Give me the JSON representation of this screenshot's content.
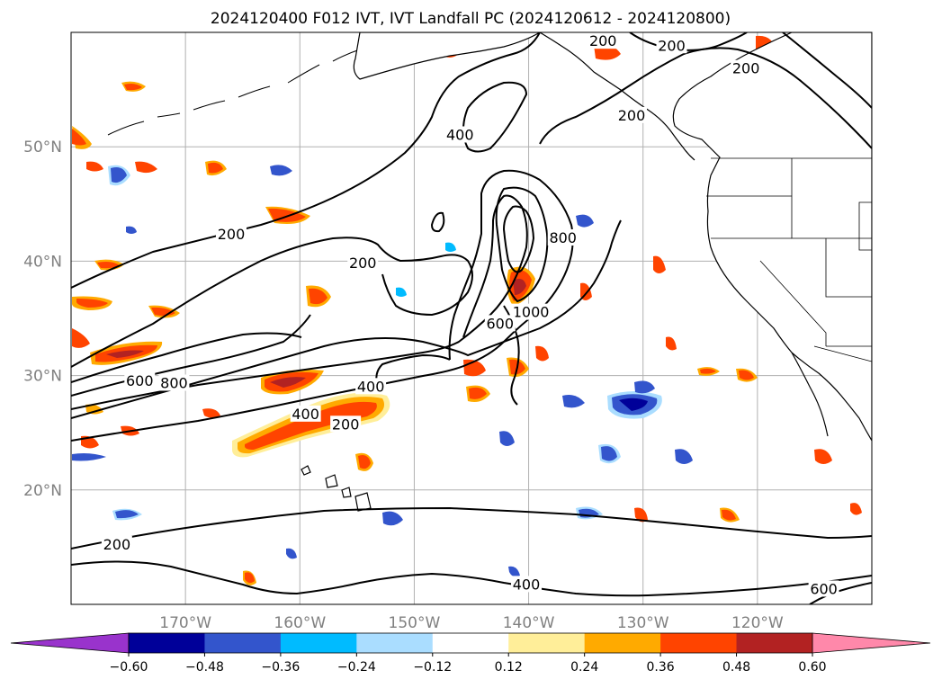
{
  "title": "2024120400 F012 IVT, IVT Landfall PC (2024120612 - 2024120800)",
  "map": {
    "lon_range": [
      -180,
      -110
    ],
    "lat_range": [
      10,
      60
    ],
    "lon_ticks": [
      {
        "value": -170,
        "label": "170°W"
      },
      {
        "value": -160,
        "label": "160°W"
      },
      {
        "value": -150,
        "label": "150°W"
      },
      {
        "value": -140,
        "label": "140°W"
      },
      {
        "value": -130,
        "label": "130°W"
      },
      {
        "value": -120,
        "label": "120°W"
      }
    ],
    "lat_ticks": [
      {
        "value": 50,
        "label": "50°N"
      },
      {
        "value": 40,
        "label": "40°N"
      },
      {
        "value": 30,
        "label": "30°N"
      },
      {
        "value": 20,
        "label": "20°N"
      }
    ],
    "contour_labels": [
      {
        "text": "200",
        "lon": -154.5,
        "lat": 39.8
      },
      {
        "text": "400",
        "lon": -146.0,
        "lat": 51.0
      },
      {
        "text": "800",
        "lon": -137.0,
        "lat": 42.0
      },
      {
        "text": "1000",
        "lon": -139.8,
        "lat": 35.5
      },
      {
        "text": "600",
        "lon": -142.5,
        "lat": 34.5
      },
      {
        "text": "200",
        "lon": -166.0,
        "lat": 42.3
      },
      {
        "text": "600",
        "lon": -174.0,
        "lat": 29.5
      },
      {
        "text": "800",
        "lon": -171.0,
        "lat": 29.3
      },
      {
        "text": "400",
        "lon": -153.8,
        "lat": 29.0
      },
      {
        "text": "400",
        "lon": -159.5,
        "lat": 26.6
      },
      {
        "text": "200",
        "lon": -156.0,
        "lat": 25.7
      },
      {
        "text": "200",
        "lon": -176.0,
        "lat": 15.2
      },
      {
        "text": "400",
        "lon": -140.2,
        "lat": 11.7
      },
      {
        "text": "600",
        "lon": -114.2,
        "lat": 11.3
      },
      {
        "text": "200",
        "lon": -127.5,
        "lat": 58.8
      },
      {
        "text": "200",
        "lon": -121.0,
        "lat": 56.8
      },
      {
        "text": "200",
        "lon": -131.0,
        "lat": 52.7
      },
      {
        "text": "200",
        "lon": -133.5,
        "lat": 59.2
      }
    ],
    "colors": {
      "background": "#ffffff",
      "frame": "#000000",
      "grid": "#b0b0b0",
      "contour": "#000000",
      "coast": "#000000",
      "land_fill": "#ffffff"
    }
  },
  "colorbar": {
    "colors": [
      "#9933cc",
      "#000099",
      "#3355cc",
      "#00bbff",
      "#aaddff",
      "#ffffff",
      "#ffee99",
      "#ffaa00",
      "#ff4400",
      "#b22222",
      "#ff88aa"
    ],
    "tick_labels": [
      "−0.60",
      "−0.48",
      "−0.36",
      "−0.24",
      "−0.12",
      "0.12",
      "0.24",
      "0.36",
      "0.48",
      "0.60"
    ],
    "extend": "both"
  },
  "chart_data": {
    "type": "map",
    "variable": "IVT",
    "overlay": "IVT Landfall PC",
    "contour_levels": [
      200,
      400,
      600,
      800,
      1000
    ],
    "color_levels": [
      -0.6,
      -0.48,
      -0.36,
      -0.24,
      -0.12,
      0.12,
      0.24,
      0.36,
      0.48,
      0.6
    ],
    "lon_range": [
      -180,
      -110
    ],
    "lat_range": [
      10,
      60
    ]
  }
}
